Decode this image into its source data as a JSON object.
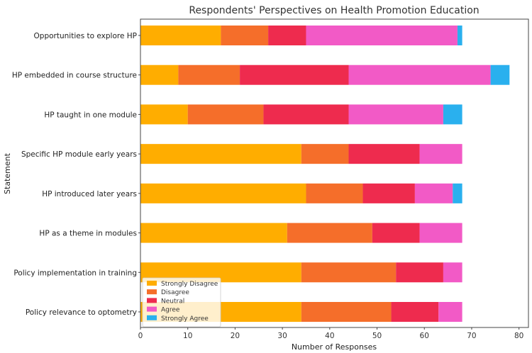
{
  "chart_data": {
    "type": "bar",
    "orientation": "horizontal",
    "stacked": true,
    "title": "Respondents' Perspectives on Health Promotion Education",
    "xlabel": "Number of Responses",
    "ylabel": "Statement",
    "xlim": [
      0,
      82
    ],
    "xticks": [
      0,
      10,
      20,
      30,
      40,
      50,
      60,
      70,
      80
    ],
    "grid": false,
    "legend_position": "lower-left",
    "categories": [
      "Opportunities to explore HP",
      "HP embedded in course structure",
      "HP taught in one module",
      "Specific HP module early years",
      "HP introduced later years",
      "HP as a theme in modules",
      "Policy implementation in training",
      "Policy relevance to optometry"
    ],
    "series": [
      {
        "name": "Strongly Disagree",
        "color": "#FFAD00",
        "values": [
          17,
          8,
          10,
          34,
          35,
          31,
          34,
          34
        ]
      },
      {
        "name": "Disagree",
        "color": "#F56E2A",
        "values": [
          10,
          13,
          16,
          10,
          12,
          18,
          20,
          19
        ]
      },
      {
        "name": "Neutral",
        "color": "#EE2B4E",
        "values": [
          8,
          23,
          18,
          15,
          11,
          10,
          10,
          10
        ]
      },
      {
        "name": "Agree",
        "color": "#F25AC6",
        "values": [
          32,
          30,
          20,
          9,
          8,
          9,
          4,
          5
        ]
      },
      {
        "name": "Strongly Agree",
        "color": "#2AB0EE",
        "values": [
          1,
          4,
          4,
          0,
          2,
          0,
          0,
          0
        ]
      }
    ]
  }
}
